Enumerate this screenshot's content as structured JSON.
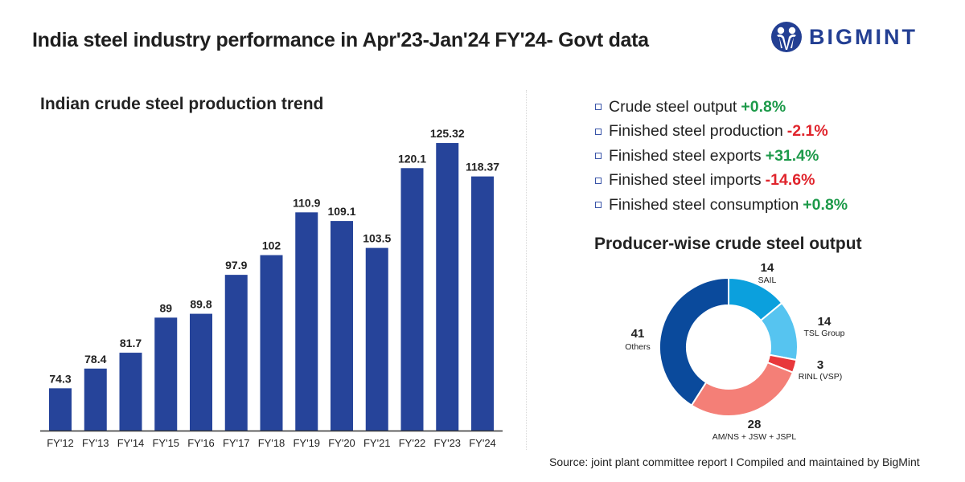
{
  "header": {
    "title": "India steel industry performance in Apr'23-Jan'24 FY'24- Govt data",
    "logo_text": "BIGMINT",
    "brand_color": "#233f93"
  },
  "chart_data": [
    {
      "type": "bar",
      "title": "Indian crude steel production trend",
      "xlabel": "",
      "ylabel": "",
      "categories": [
        "FY'12",
        "FY'13",
        "FY'14",
        "FY'15",
        "FY'16",
        "FY'17",
        "FY'18",
        "FY'19",
        "FY'20",
        "FY'21",
        "FY'22",
        "FY'23",
        "FY'24"
      ],
      "values": [
        74.3,
        78.4,
        81.7,
        89,
        89.8,
        97.9,
        102,
        110.9,
        109.1,
        103.5,
        120.1,
        125.32,
        118.37
      ],
      "data_labels": [
        "74.3",
        "78.4",
        "81.7",
        "89",
        "89.8",
        "97.9",
        "102",
        "110.9",
        "109.1",
        "103.5",
        "120.1",
        "125.32",
        "118.37"
      ],
      "ylim": [
        65.5,
        128
      ],
      "grid": false,
      "legend": "none",
      "bar_color": "#26449a"
    },
    {
      "type": "pie",
      "variant": "donut",
      "title": "Producer-wise crude steel output",
      "slices": [
        {
          "label": "SAIL",
          "value": 14,
          "value_label": "14",
          "color": "#0ba0dd"
        },
        {
          "label": "TSL Group",
          "value": 14,
          "value_label": "14",
          "color": "#56c4f0"
        },
        {
          "label": "RINL (VSP)",
          "value": 3,
          "value_label": "3",
          "color": "#e8383b"
        },
        {
          "label": "AM/NS + JSW + JSPL",
          "value": 28,
          "value_label": "28",
          "color": "#f47f77"
        },
        {
          "label": "Others",
          "value": 41,
          "value_label": "41",
          "color": "#0a4a9c"
        }
      ],
      "start": "top",
      "direction": "clockwise",
      "legend": "none"
    }
  ],
  "kpis": [
    {
      "label": "Crude steel output",
      "value": "+0.8%",
      "trend": "pos"
    },
    {
      "label": "Finished steel production",
      "value": "-2.1%",
      "trend": "neg"
    },
    {
      "label": "Finished steel exports",
      "value": "+31.4%",
      "trend": "pos"
    },
    {
      "label": "Finished steel imports",
      "value": "-14.6%",
      "trend": "neg"
    },
    {
      "label": "Finished steel consumption",
      "value": "+0.8%",
      "trend": "pos"
    }
  ],
  "colors": {
    "positive": "#1d9a4a",
    "negative": "#e0242c"
  },
  "footer": {
    "source": "Source: joint plant committee report  I  Compiled and maintained by BigMint"
  }
}
